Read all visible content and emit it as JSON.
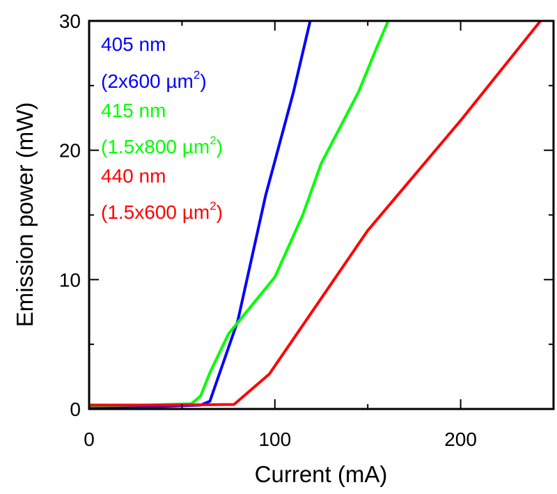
{
  "chart_data": {
    "type": "line",
    "title": "",
    "xlabel": "Current (mA)",
    "ylabel": "Emission power (mW)",
    "xlim": [
      0,
      250
    ],
    "ylim": [
      0,
      30
    ],
    "xticks": [
      0,
      100,
      200
    ],
    "xticks_minor": [
      50,
      150,
      250
    ],
    "yticks": [
      0,
      10,
      20,
      30
    ],
    "yticks_minor": [
      5,
      15,
      25
    ],
    "xtick_labels": [
      "0",
      "100",
      "200"
    ],
    "ytick_labels": [
      "0",
      "10",
      "20",
      "30"
    ],
    "grid": false,
    "legend_placement": "top-left",
    "series": [
      {
        "name": "405 nm",
        "area_label": "(2x600 µm",
        "area_sup": "2",
        "area_close": ")",
        "color": "#0000ff",
        "x": [
          0,
          30,
          60,
          65,
          80,
          95,
          110,
          119
        ],
        "y": [
          0.1,
          0.15,
          0.3,
          0.6,
          6.8,
          16.5,
          24.5,
          30
        ]
      },
      {
        "name": "415 nm",
        "area_label": "(1.5x800 µm",
        "area_sup": "2",
        "area_close": ")",
        "color": "#00ff00",
        "x": [
          0,
          30,
          55,
          60,
          65,
          75,
          100,
          115,
          125,
          145,
          155,
          161
        ],
        "y": [
          0.25,
          0.3,
          0.4,
          1.0,
          2.8,
          5.8,
          10.2,
          15,
          19,
          24.5,
          28,
          30
        ]
      },
      {
        "name": "440 nm",
        "area_label": "(1.5x600 µm",
        "area_sup": "2",
        "area_close": ")",
        "color": "#ff0000",
        "x": [
          0,
          40,
          78,
          97,
          150,
          200,
          243
        ],
        "y": [
          0.3,
          0.3,
          0.35,
          2.7,
          13.8,
          22.3,
          30
        ]
      }
    ]
  }
}
